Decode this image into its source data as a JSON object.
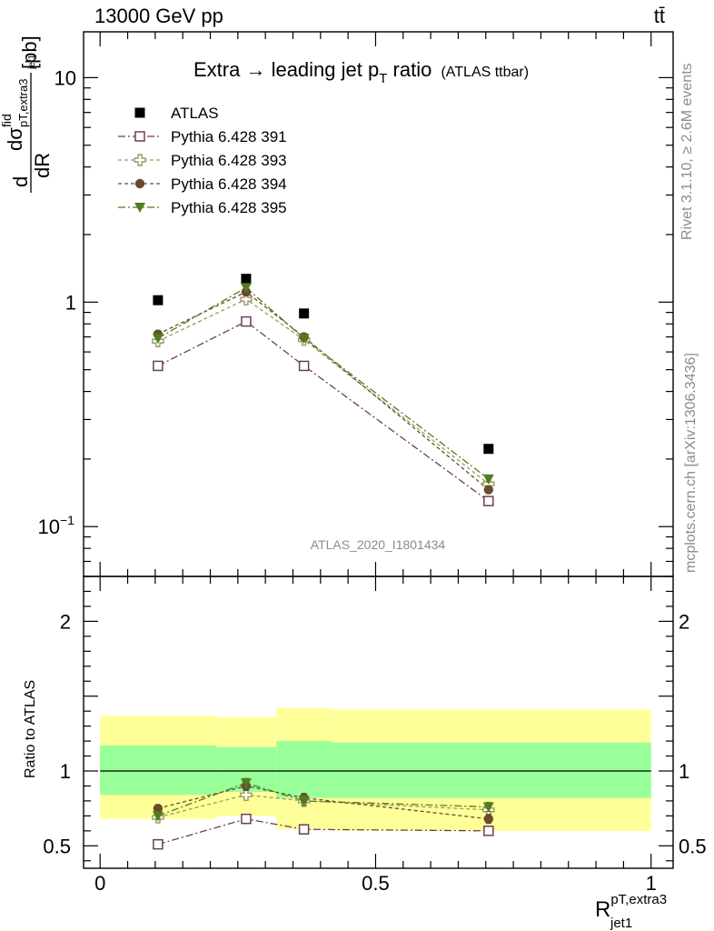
{
  "header": {
    "left": "13000 GeV pp",
    "right": "tt̄"
  },
  "side_labels": {
    "rivet": "Rivet 3.1.10, ≥ 2.6M events",
    "mcplots": "mcplots.cern.ch [arXiv:1306.3436]"
  },
  "chart_data": [
    {
      "type": "scatter",
      "panel": "main",
      "title": "Extra → leading jet p",
      "title_sub": "T",
      "title_tail": " ratio",
      "title_small": "(ATLAS ttbar)",
      "analysis_tag": "ATLAS_2020_I1801434",
      "ylabel": "dσ/dR [pb]",
      "ylabel_display": {
        "d1": "d",
        "sigma": "dσ",
        "fid": "fid",
        "sub": "pT,extra3",
        "subsub": "jet1",
        "dR": "dR",
        "units": "[pb]"
      },
      "yscale": "log",
      "ylim": [
        0.06,
        16
      ],
      "xlim": [
        -0.03,
        1.04
      ],
      "y_ticks": [
        {
          "value": 0.1,
          "label": "10",
          "exp": "−1"
        },
        {
          "value": 1,
          "label": "1",
          "exp": ""
        },
        {
          "value": 10,
          "label": "10",
          "exp": ""
        }
      ],
      "legend_position": "top-left",
      "series": [
        {
          "name": "ATLAS",
          "color": "#000000",
          "marker": "square-filled",
          "line": "none",
          "x": [
            0.105,
            0.265,
            0.37,
            0.705
          ],
          "y": [
            1.02,
            1.27,
            0.89,
            0.222
          ]
        },
        {
          "name": "Pythia 6.428 391",
          "color": "#6b3f57",
          "marker": "square-open",
          "line": "dashdot",
          "x": [
            0.105,
            0.265,
            0.37,
            0.705
          ],
          "y": [
            0.52,
            0.82,
            0.52,
            0.13
          ],
          "yerr": [
            0.012,
            0.02,
            0.015,
            0.006
          ]
        },
        {
          "name": "Pythia 6.428 393",
          "color": "#9c9a5c",
          "marker": "plus-open",
          "line": "dashed",
          "x": [
            0.105,
            0.265,
            0.37,
            0.705
          ],
          "y": [
            0.67,
            1.03,
            0.68,
            0.155
          ],
          "yerr": [
            0.015,
            0.025,
            0.02,
            0.006
          ]
        },
        {
          "name": "Pythia 6.428 394",
          "color": "#6b4a2e",
          "marker": "circle-filled",
          "line": "dashed",
          "x": [
            0.105,
            0.265,
            0.37,
            0.705
          ],
          "y": [
            0.72,
            1.11,
            0.7,
            0.146
          ],
          "yerr": [
            0.015,
            0.025,
            0.02,
            0.006
          ]
        },
        {
          "name": "Pythia 6.428 395",
          "color": "#4f7d1f",
          "marker": "triangle-down-filled",
          "line": "dashdot",
          "x": [
            0.105,
            0.265,
            0.37,
            0.705
          ],
          "y": [
            0.69,
            1.16,
            0.69,
            0.163
          ],
          "yerr": [
            0.015,
            0.025,
            0.02,
            0.006
          ]
        }
      ]
    },
    {
      "type": "scatter",
      "panel": "ratio",
      "ylabel": "Ratio to ATLAS",
      "xlabel": "R",
      "xlabel_sup": "pT,extra3",
      "xlabel_sub": "jet1",
      "xlim": [
        -0.03,
        1.04
      ],
      "ylim": [
        0.35,
        2.3
      ],
      "x_ticks": [
        {
          "value": 0,
          "label": "0"
        },
        {
          "value": 0.5,
          "label": "0.5"
        },
        {
          "value": 1,
          "label": "1"
        }
      ],
      "y_ticks": [
        {
          "value": 0.5,
          "label": "0.5"
        },
        {
          "value": 1,
          "label": "1"
        },
        {
          "value": 2,
          "label": "2"
        }
      ],
      "bands": [
        {
          "x0": 0.0,
          "x1": 0.21,
          "yellow": [
            0.68,
            1.37
          ],
          "green": [
            0.84,
            1.17
          ]
        },
        {
          "x0": 0.21,
          "x1": 0.32,
          "yellow": [
            0.7,
            1.36
          ],
          "green": [
            0.86,
            1.16
          ]
        },
        {
          "x0": 0.32,
          "x1": 0.42,
          "yellow": [
            0.61,
            1.42
          ],
          "green": [
            0.82,
            1.2
          ]
        },
        {
          "x0": 0.42,
          "x1": 1.0,
          "yellow": [
            0.6,
            1.41
          ],
          "green": [
            0.82,
            1.19
          ]
        }
      ],
      "series": [
        {
          "name": "Pythia 6.428 391",
          "x": [
            0.105,
            0.265,
            0.37,
            0.705
          ],
          "y": [
            0.51,
            0.68,
            0.61,
            0.6
          ],
          "yerr": [
            0.015,
            0.025,
            0.03,
            0.03
          ]
        },
        {
          "name": "Pythia 6.428 393",
          "x": [
            0.105,
            0.265,
            0.37,
            0.705
          ],
          "y": [
            0.69,
            0.84,
            0.8,
            0.74
          ],
          "yerr": [
            0.02,
            0.03,
            0.03,
            0.03
          ]
        },
        {
          "name": "Pythia 6.428 394",
          "x": [
            0.105,
            0.265,
            0.37,
            0.705
          ],
          "y": [
            0.75,
            0.9,
            0.82,
            0.68
          ],
          "yerr": [
            0.02,
            0.03,
            0.03,
            0.03
          ]
        },
        {
          "name": "Pythia 6.428 395",
          "x": [
            0.105,
            0.265,
            0.37,
            0.705
          ],
          "y": [
            0.7,
            0.92,
            0.8,
            0.76
          ],
          "yerr": [
            0.02,
            0.03,
            0.03,
            0.03
          ]
        }
      ]
    }
  ]
}
